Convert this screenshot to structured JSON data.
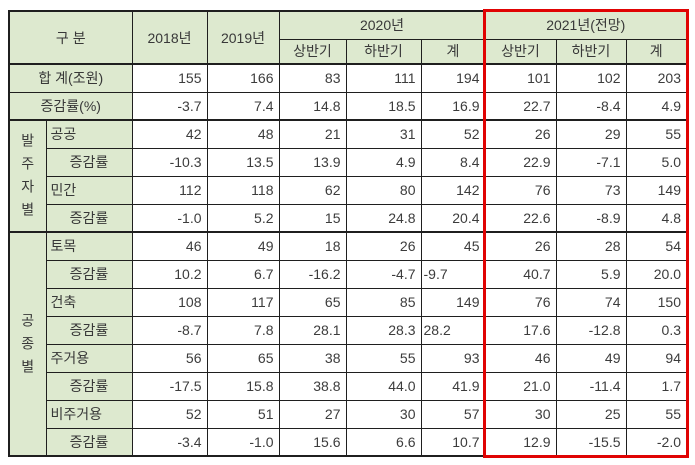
{
  "colors": {
    "header_bg": "#dde9cf",
    "highlight_border": "#e00303",
    "grid_border": "#1f1f1f",
    "text": "#3c3c3c"
  },
  "table": {
    "header": {
      "category": "구 분",
      "y2018": "2018년",
      "y2019": "2019년",
      "y2020": "2020년",
      "y2021": "2021년(전망)",
      "sub": [
        "상반기",
        "하반기",
        "계",
        "상반기",
        "하반기",
        "계"
      ]
    },
    "groups": {
      "orderer": "발주자별",
      "worktype": "공종별"
    },
    "rows": [
      {
        "label": "합 계(조원)",
        "values": [
          "155",
          "166",
          "83",
          "111",
          "194",
          "101",
          "102",
          "203"
        ]
      },
      {
        "label": "증감률(%)",
        "values": [
          "-3.7",
          "7.4",
          "14.8",
          "18.5",
          "16.9",
          "22.7",
          "-8.4",
          "4.9"
        ]
      },
      {
        "label": "공공",
        "values": [
          "42",
          "48",
          "21",
          "31",
          "52",
          "26",
          "29",
          "55"
        ]
      },
      {
        "label": "증감률",
        "values": [
          "-10.3",
          "13.5",
          "13.9",
          "4.9",
          "8.4",
          "22.9",
          "-7.1",
          "5.0"
        ]
      },
      {
        "label": "민간",
        "values": [
          "112",
          "118",
          "62",
          "80",
          "142",
          "76",
          "73",
          "149"
        ]
      },
      {
        "label": "증감률",
        "values": [
          "-1.0",
          "5.2",
          "15",
          "24.8",
          "20.4",
          "22.6",
          "-8.9",
          "4.8"
        ]
      },
      {
        "label": "토목",
        "values": [
          "46",
          "49",
          "18",
          "26",
          "45",
          "26",
          "28",
          "54"
        ]
      },
      {
        "label": "증감률",
        "values": [
          "10.2",
          "6.7",
          "-16.2",
          "-4.7",
          "-9.7",
          "40.7",
          "5.9",
          "20.0"
        ]
      },
      {
        "label": "건축",
        "values": [
          "108",
          "117",
          "65",
          "85",
          "149",
          "76",
          "74",
          "150"
        ]
      },
      {
        "label": "증감률",
        "values": [
          "-8.7",
          "7.8",
          "28.1",
          "28.3",
          "28.2",
          "17.6",
          "-12.8",
          "0.3"
        ]
      },
      {
        "label": "주거용",
        "values": [
          "56",
          "65",
          "38",
          "55",
          "93",
          "46",
          "49",
          "94"
        ]
      },
      {
        "label": "증감률",
        "values": [
          "-17.5",
          "15.8",
          "38.8",
          "44.0",
          "41.9",
          "21.0",
          "-11.4",
          "1.7"
        ]
      },
      {
        "label": "비주거용",
        "values": [
          "52",
          "51",
          "27",
          "30",
          "57",
          "30",
          "25",
          "55"
        ]
      },
      {
        "label": "증감률",
        "values": [
          "-3.4",
          "-1.0",
          "15.6",
          "6.6",
          "10.7",
          "12.9",
          "-15.5",
          "-2.0"
        ]
      }
    ]
  }
}
